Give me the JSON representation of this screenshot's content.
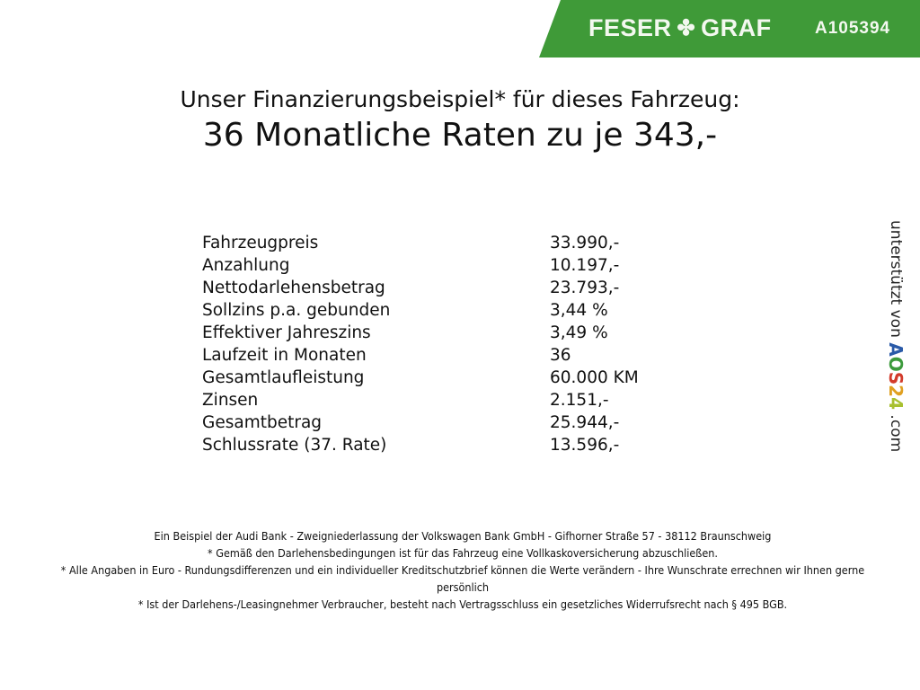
{
  "header": {
    "brand_left": "FESER",
    "brand_right": "GRAF",
    "clover_icon": "clover-icon",
    "vehicle_code": "A105394",
    "color": "#3f9a38"
  },
  "title": {
    "line1": "Unser Finanzierungsbeispiel* für dieses Fahrzeug:",
    "line2": "36 Monatliche Raten zu je 343,-"
  },
  "rows": [
    {
      "label": "Fahrzeugpreis",
      "value": "33.990,-"
    },
    {
      "label": "Anzahlung",
      "value": "10.197,-"
    },
    {
      "label": "Nettodarlehensbetrag",
      "value": "23.793,-"
    },
    {
      "label": "Sollzins p.a. gebunden",
      "value": "3,44 %"
    },
    {
      "label": "Effektiver Jahreszins",
      "value": "3,49 %"
    },
    {
      "label": "Laufzeit in Monaten",
      "value": "36"
    },
    {
      "label": "Gesamtlaufleistung",
      "value": "60.000 KM"
    },
    {
      "label": "Zinsen",
      "value": "2.151,-"
    },
    {
      "label": "Gesamtbetrag",
      "value": "25.944,-"
    },
    {
      "label": "Schlussrate (37. Rate)",
      "value": "13.596,-"
    }
  ],
  "side": {
    "text": "unterstützt von",
    "logo": [
      "A",
      "O",
      "S",
      "2",
      "4"
    ],
    "logo_colors": [
      "#2a5aa8",
      "#3c9a3c",
      "#d23a2a",
      "#e0a020",
      "#a8c030"
    ],
    "suffix": ".com"
  },
  "footer": [
    "Ein Beispiel der Audi Bank - Zweigniederlassung der Volkswagen Bank GmbH - Gifhorner Straße 57 - 38112 Braunschweig",
    "* Gemäß den Darlehensbedingungen ist für das Fahrzeug eine Vollkaskoversicherung abzuschließen.",
    "* Alle Angaben in Euro - Rundungsdifferenzen und ein individueller Kreditschutzbrief können die Werte verändern - Ihre Wunschrate errechnen wir Ihnen gerne persönlich",
    "* Ist der Darlehens-/Leasingnehmer Verbraucher, besteht nach Vertragsschluss ein gesetzliches Widerrufsrecht nach § 495 BGB."
  ]
}
